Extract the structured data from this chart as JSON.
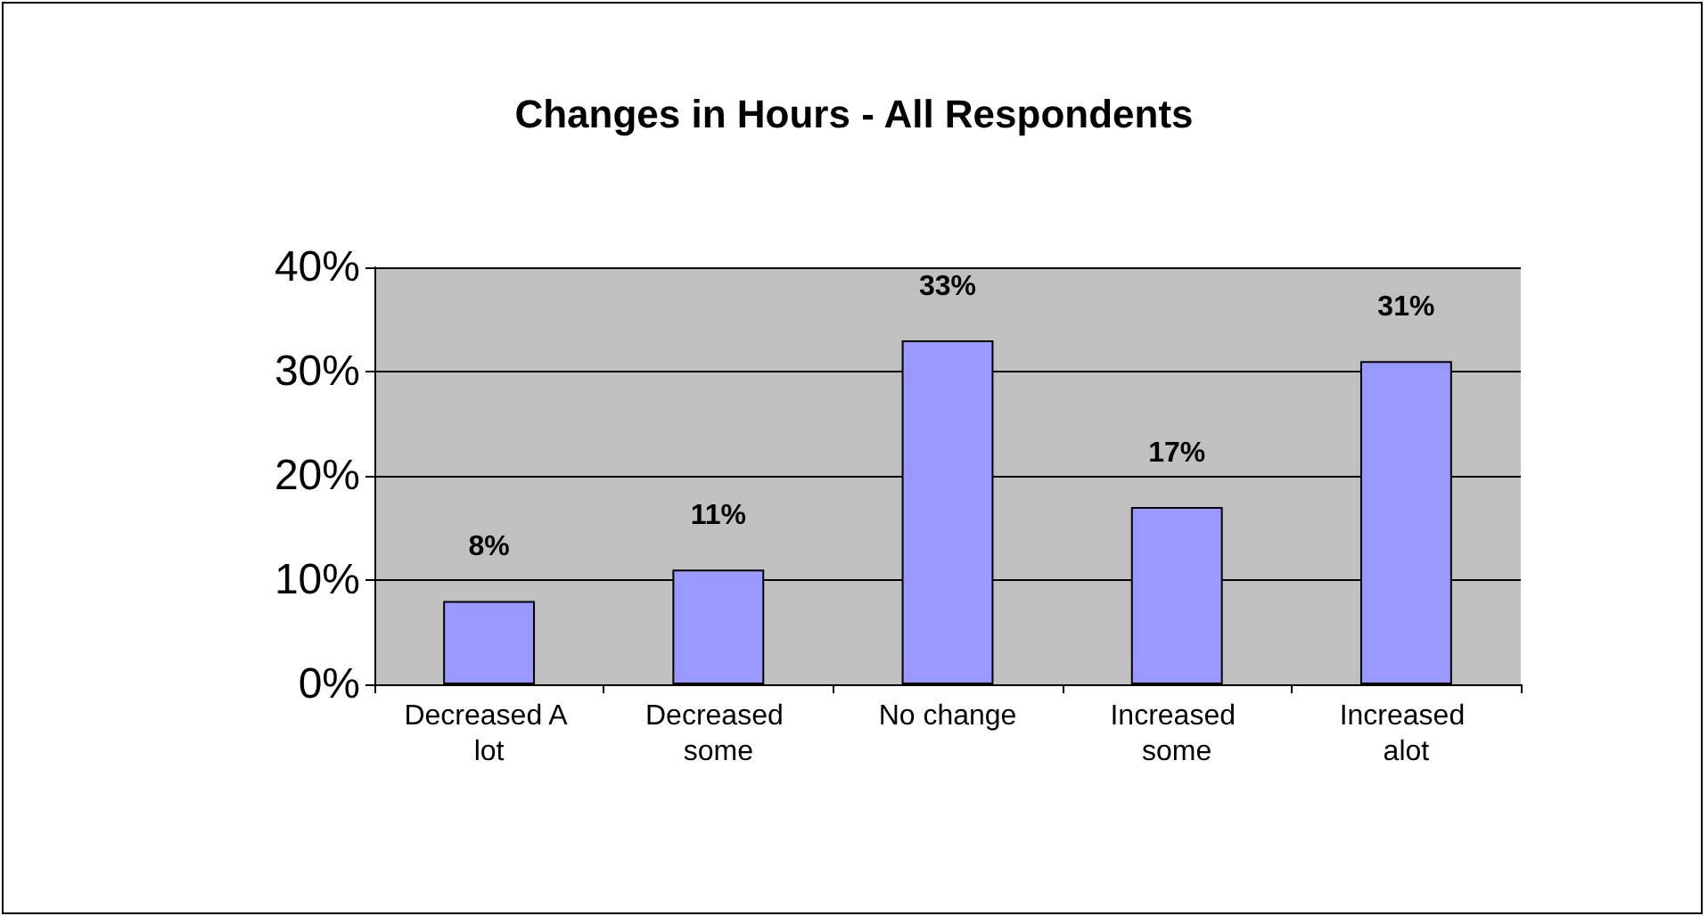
{
  "chart_data": {
    "type": "bar",
    "title": "Changes in Hours - All Respondents",
    "categories": [
      "Decreased A lot",
      "Decreased some",
      "No change",
      "Increased some",
      "Increased alot"
    ],
    "values": [
      8,
      11,
      33,
      17,
      31
    ],
    "value_labels": [
      "8%",
      "11%",
      "33%",
      "17%",
      "31%"
    ],
    "color": "#9999ff",
    "ylim": [
      0,
      40
    ],
    "yticks": [
      {
        "value": 0,
        "label": "0%"
      },
      {
        "value": 10,
        "label": "10%"
      },
      {
        "value": 20,
        "label": "20%"
      },
      {
        "value": 30,
        "label": "30%"
      },
      {
        "value": 40,
        "label": "40%"
      }
    ],
    "grid": "y"
  }
}
